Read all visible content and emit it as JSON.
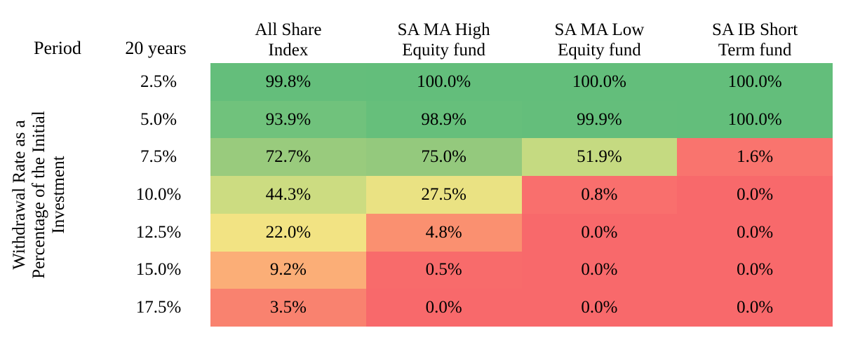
{
  "axis": {
    "label_lines": [
      "Withdrawal Rate as a",
      "Percentage of the Initial",
      "Investment"
    ]
  },
  "header": {
    "period": "Period",
    "duration": "20 years"
  },
  "chart_data": {
    "type": "heatmap",
    "title": "",
    "row_axis_label": "Withdrawal Rate as a Percentage of the Initial Investment",
    "period_header": "Period",
    "period_value": "20 years",
    "columns": [
      "All Share Index",
      "SA MA High Equity fund",
      "SA MA Low Equity fund",
      "SA IB Short Term fund"
    ],
    "columns_lines": [
      [
        "All Share",
        "Index"
      ],
      [
        "SA MA High",
        "Equity fund"
      ],
      [
        "SA MA Low",
        "Equity fund"
      ],
      [
        "SA IB Short",
        "Term fund"
      ]
    ],
    "row_labels": [
      "2.5%",
      "5.0%",
      "7.5%",
      "10.0%",
      "12.5%",
      "15.0%",
      "17.5%"
    ],
    "values_pct": [
      [
        99.8,
        100.0,
        100.0,
        100.0
      ],
      [
        93.9,
        98.9,
        99.9,
        100.0
      ],
      [
        72.7,
        75.0,
        51.9,
        1.6
      ],
      [
        44.3,
        27.5,
        0.8,
        0.0
      ],
      [
        22.0,
        4.8,
        0.0,
        0.0
      ],
      [
        9.2,
        0.5,
        0.0,
        0.0
      ],
      [
        3.5,
        0.0,
        0.0,
        0.0
      ]
    ],
    "display_values": [
      [
        "99.8%",
        "100.0%",
        "100.0%",
        "100.0%"
      ],
      [
        "93.9%",
        "98.9%",
        "99.9%",
        "100.0%"
      ],
      [
        "72.7%",
        "75.0%",
        "51.9%",
        "1.6%"
      ],
      [
        "44.3%",
        "27.5%",
        "0.8%",
        "0.0%"
      ],
      [
        "22.0%",
        "4.8%",
        "0.0%",
        "0.0%"
      ],
      [
        "9.2%",
        "0.5%",
        "0.0%",
        "0.0%"
      ],
      [
        "3.5%",
        "0.0%",
        "0.0%",
        "0.0%"
      ]
    ],
    "cell_colors": [
      [
        "#64BE7B",
        "#63BE7B",
        "#63BE7B",
        "#63BE7B"
      ],
      [
        "#70C27C",
        "#66BF7B",
        "#64BE7B",
        "#63BE7B"
      ],
      [
        "#99CB7D",
        "#94C97D",
        "#C5DA81",
        "#F9746E"
      ],
      [
        "#CCDC81",
        "#EAE283",
        "#F96F6D",
        "#F8696B"
      ],
      [
        "#F2E383",
        "#FA9070",
        "#F8696B",
        "#F8696B"
      ],
      [
        "#FBAE77",
        "#F86B6B",
        "#F8696B",
        "#F8696B"
      ],
      [
        "#F9826F",
        "#F8696B",
        "#F8696B",
        "#F8696B"
      ]
    ],
    "colorscale": {
      "low": "#F8696B",
      "mid": "#FFEB84",
      "high": "#63BE7B"
    },
    "layout": {
      "grid": false,
      "legend": "none",
      "value_format": "percent_1dp"
    }
  }
}
